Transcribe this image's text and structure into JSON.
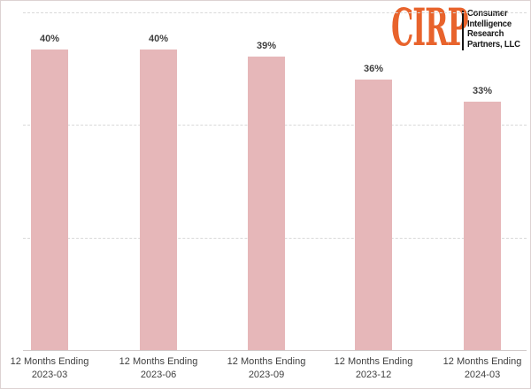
{
  "logo": {
    "brand": "CIRP",
    "brand_color": "#e8632c",
    "company_lines": [
      "Consumer",
      "Intelligence",
      "Research",
      "Partners, LLC"
    ]
  },
  "chart_data": {
    "type": "bar",
    "title": "",
    "categories": [
      {
        "line1": "12 Months Ending",
        "line2": "2023-03"
      },
      {
        "line1": "12 Months Ending",
        "line2": "2023-06"
      },
      {
        "line1": "12 Months Ending",
        "line2": "2023-09"
      },
      {
        "line1": "12 Months Ending",
        "line2": "2023-12"
      },
      {
        "line1": "12 Months Ending",
        "line2": "2024-03"
      }
    ],
    "values": [
      40,
      40,
      39,
      36,
      33
    ],
    "value_labels": [
      "40%",
      "40%",
      "39%",
      "36%",
      "33%"
    ],
    "unit": "percent",
    "ylim": [
      0,
      45
    ],
    "gridline_values": [
      45,
      30,
      15
    ],
    "grid": "dashed-horizontal",
    "legend": "none",
    "y_axis_labels": "none",
    "bar_color": "#e6b7b9",
    "label_color": "#3f3f3f"
  }
}
